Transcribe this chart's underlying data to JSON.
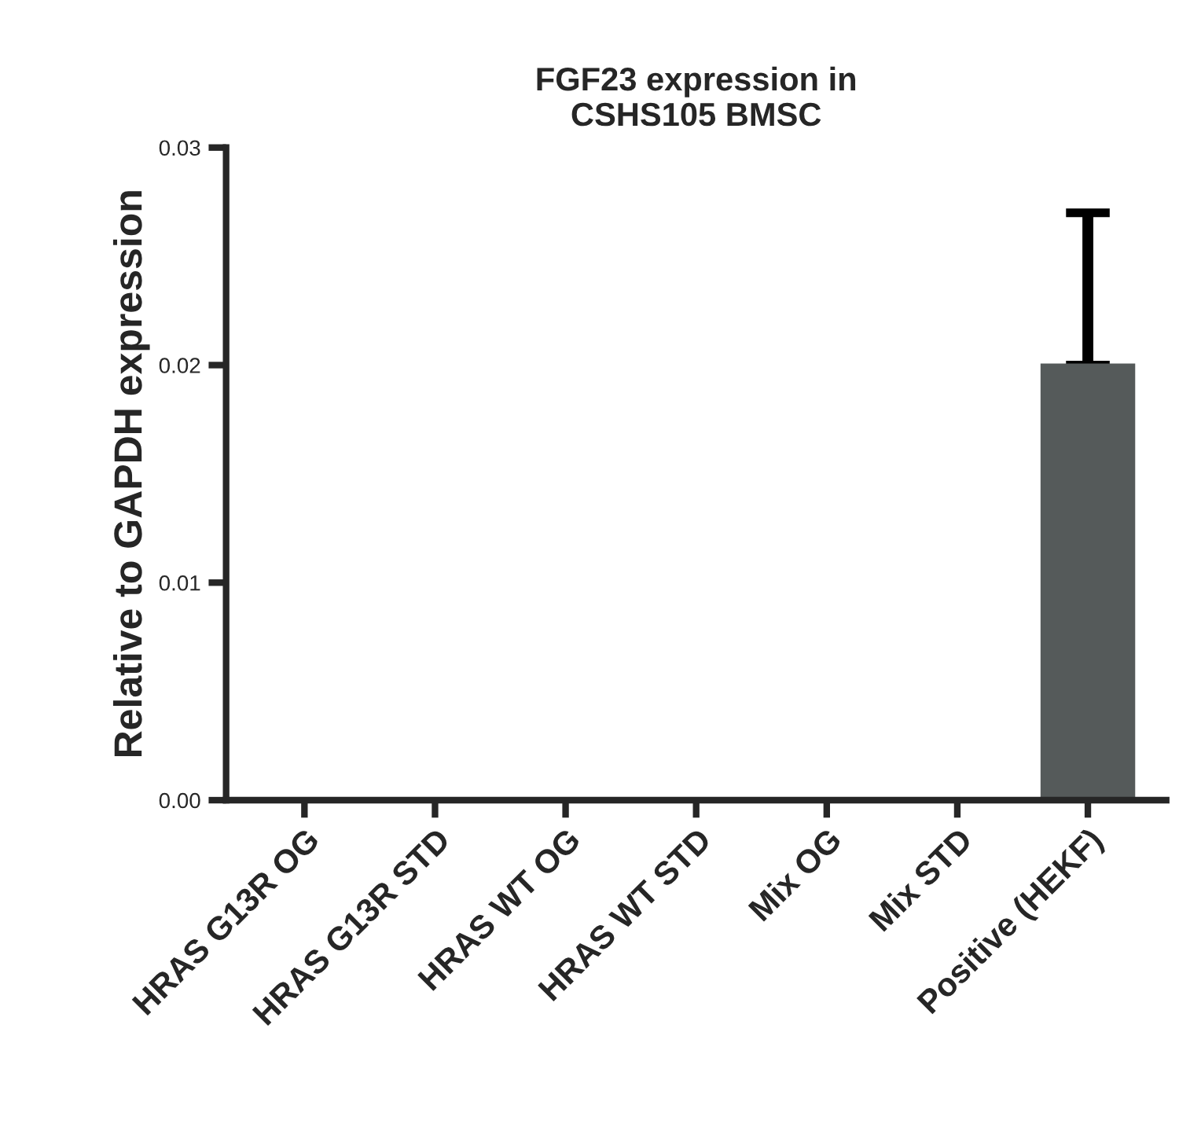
{
  "chart_data": {
    "type": "bar",
    "title": "FGF23 expression in\nCSHS105 BMSC",
    "ylabel": "Relative to GAPDH expression",
    "categories": [
      "HRAS G13R OG",
      "HRAS G13R STD",
      "HRAS WT OG",
      "HRAS WT STD",
      "Mix OG",
      "Mix STD",
      "Positive (HEKF)"
    ],
    "values": [
      0,
      0,
      0,
      0,
      0,
      0,
      0.02
    ],
    "errors": [
      null,
      null,
      null,
      null,
      null,
      null,
      [
        0.02,
        0.027
      ]
    ],
    "colors": [
      "#222222",
      "#222222",
      "#222222",
      "#222222",
      "#222222",
      "#222222",
      "#555a5a"
    ],
    "ylim": [
      0,
      0.03
    ],
    "yticks": [
      {
        "value": 0,
        "label": "0.00"
      },
      {
        "value": 0.01,
        "label": "0.01"
      },
      {
        "value": 0.02,
        "label": "0.02"
      },
      {
        "value": 0.03,
        "label": "0.03"
      }
    ],
    "grid": false
  }
}
